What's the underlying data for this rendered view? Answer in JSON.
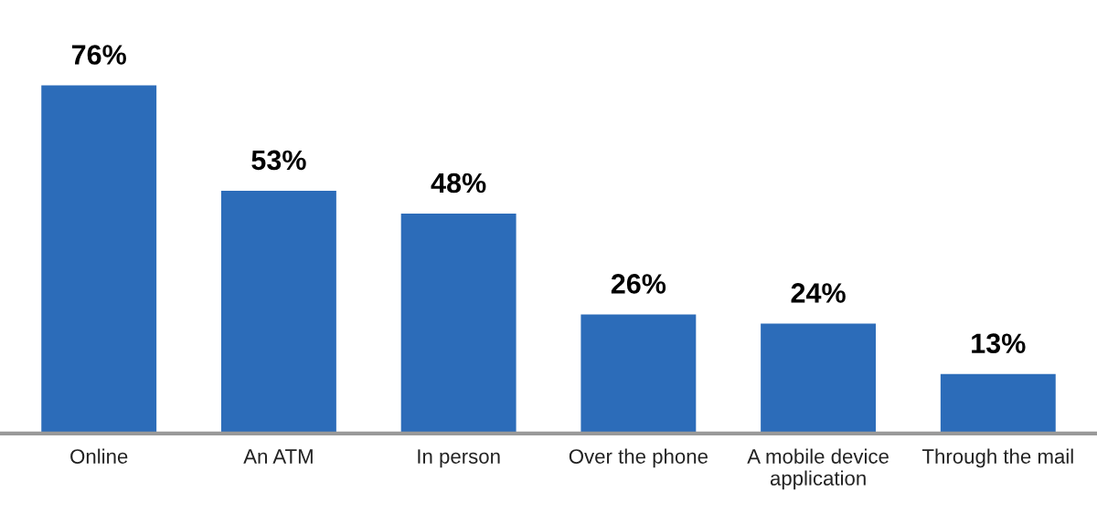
{
  "chart_data": {
    "type": "bar",
    "categories": [
      "Online",
      "An ATM",
      "In person",
      "Over the phone",
      "A mobile device application",
      "Through the mail"
    ],
    "values": [
      76,
      53,
      48,
      26,
      24,
      13
    ],
    "value_labels": [
      "76%",
      "53%",
      "48%",
      "26%",
      "24%",
      "13%"
    ],
    "color": "#2c6cb9"
  }
}
